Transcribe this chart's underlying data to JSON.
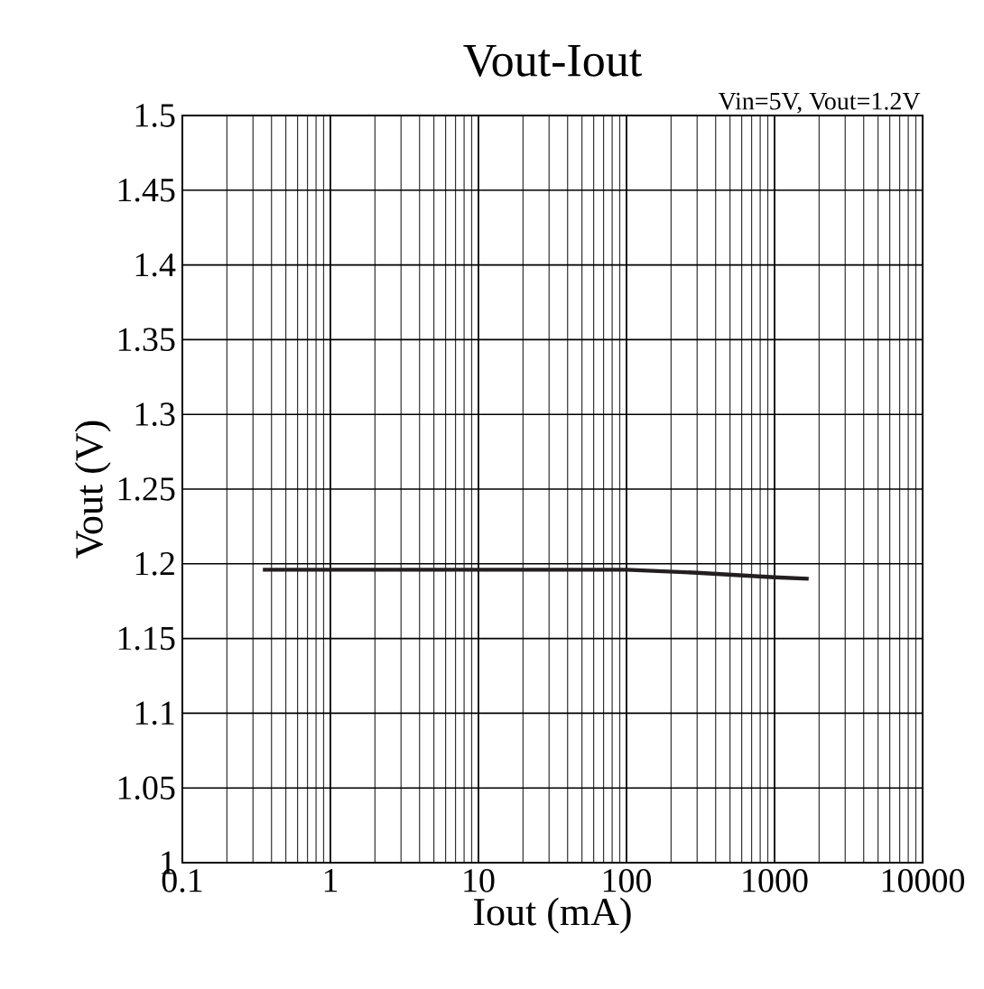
{
  "chart_data": {
    "type": "line",
    "title": "Vout-Iout",
    "xlabel": "Iout (mA)",
    "ylabel": "Vout (V)",
    "annotations": [
      "Vin=5V, Vout=1.2V"
    ],
    "x": [
      0.35,
      1,
      10,
      100,
      300,
      1000,
      1700
    ],
    "series": [
      {
        "color": "#231f20",
        "values": [
          1.196,
          1.196,
          1.196,
          1.196,
          1.194,
          1.191,
          1.19
        ]
      }
    ],
    "log": "x",
    "xlim": [
      0.1,
      10000
    ],
    "xticks": [
      0.1,
      1,
      10,
      100,
      1000,
      10000
    ],
    "ylim": [
      1,
      1.5
    ],
    "yticks": [
      1,
      1.05,
      1.1,
      1.15,
      1.2,
      1.25,
      1.3,
      1.35,
      1.4,
      1.45,
      1.5
    ],
    "grid": true,
    "marker": "none",
    "line_style": "solid"
  }
}
